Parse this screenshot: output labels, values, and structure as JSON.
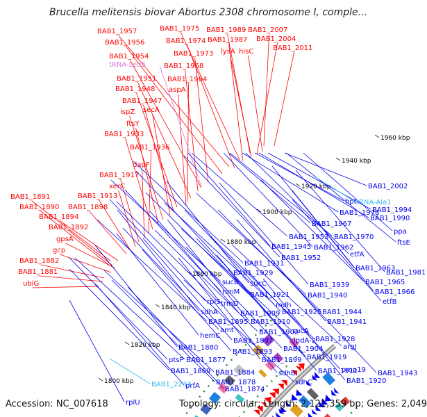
{
  "title": "Brucella melitensis biovar Abortus 2308 chromosome I, comple...",
  "footer": {
    "accession": "Accession: NC_007618",
    "topology": "Topology: circular; Length: 2,121,359 bp; Genes: 2,049"
  },
  "colors": {
    "forward_gene": "#ff0000",
    "reverse_gene": "#0000ee",
    "trna": "#dd77dd",
    "trna_reverse": "#33bbee",
    "backbone": "#999999",
    "dots": "#228822"
  },
  "scale_ticks": [
    "1960 kbp",
    "1940 kbp",
    "1920 kbp",
    "1900 kbp",
    "1880 kbp",
    "1860 kbp",
    "1840 kbp",
    "1820 kbp",
    "1800 kbp"
  ],
  "labels_forward": [
    "BAB1_1957",
    "BAB1_1975",
    "BAB1_1989",
    "BAB1_2007",
    "BAB1_1956",
    "BAB1_1974",
    "BAB1_1987",
    "BAB1_2004",
    "lysA",
    "hisC",
    "BAB1_2011",
    "BAB1_1973",
    "BAB1_1954",
    "BAB1_1968",
    "BAB1_1951",
    "BAB1_1964",
    "aspA",
    "BAB1_1948",
    "BAB1_1947",
    "secA",
    "ispZ",
    "ftsY",
    "BAB1_1933",
    "BAB1_1936",
    "dapF",
    "BAB1_1917",
    "xerC",
    "BAB1_1913",
    "BAB1_1891",
    "BAB1_1898",
    "BAB1_1890",
    "BAB1_1894",
    "BAB1_1892",
    "gpsA",
    "gcp",
    "BAB1_1882",
    "BAB1_1881",
    "ubiG"
  ],
  "labels_trna_forward": [
    "tRNA-Leu5"
  ],
  "labels_reverse": [
    "BAB1_2002",
    "hpt",
    "BAB1_1978",
    "BAB1_1994",
    "BAB1_1990",
    "BAB1_1967",
    "ppa",
    "BAB1_1953",
    "BAB1_1970",
    "ftsE",
    "BAB1_1945",
    "BAB1_1962",
    "BAB1_1952",
    "etfA",
    "BAB1_1931",
    "BAB1_1963",
    "BAB1_1981",
    "BAB1_1929",
    "BAB1_1965",
    "sucB",
    "sucC",
    "BAB1_1939",
    "rimM",
    "BAB1_1921",
    "BAB1_1940",
    "BAB1_1966",
    "etfB",
    "rplS",
    "trmD",
    "mdh",
    "sdhA",
    "BAB1_1909",
    "BAB1_1925",
    "BAB1_1944",
    "BAB1_1895",
    "BAB1_1910",
    "BAB1_1941",
    "amt",
    "BAB1_1902",
    "sucA",
    "hemC",
    "BAB1_1897",
    "lpdA-2",
    "BAB1_1928",
    "argJ",
    "BAB1_1880",
    "BAB1_1893",
    "BAB1_1904",
    "ptsP",
    "BAB1_1877",
    "BAB1_1899",
    "BAB1_1919",
    "omp19",
    "BAB1_1869",
    "BAB1_1884",
    "sdhB",
    "BAB1_1911",
    "BAB1_1943",
    "BAB1_1878",
    "sdhC",
    "BAB1_1920",
    "prfA",
    "BAB1_1874",
    "rplU"
  ],
  "labels_trna_reverse": [
    "tRNA-Ala1",
    "BAB1_2233"
  ]
}
